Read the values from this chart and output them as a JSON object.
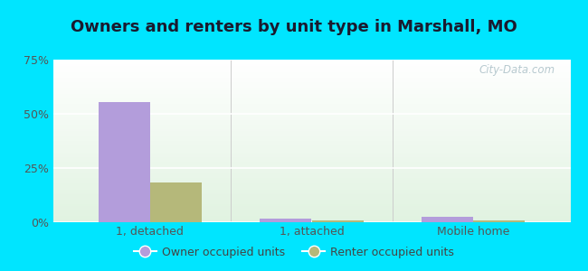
{
  "title": "Owners and renters by unit type in Marshall, MO",
  "categories": [
    "1, detached",
    "1, attached",
    "Mobile home"
  ],
  "owner_values": [
    55.5,
    1.5,
    2.5
  ],
  "renter_values": [
    18.5,
    1.0,
    0.8
  ],
  "owner_color": "#b39ddb",
  "renter_color": "#b5b87a",
  "ylim": [
    0,
    75
  ],
  "yticks": [
    0,
    25,
    50,
    75
  ],
  "ytick_labels": [
    "0%",
    "25%",
    "50%",
    "75%"
  ],
  "bar_width": 0.32,
  "background_outer": "#00e5ff",
  "legend_owner": "Owner occupied units",
  "legend_renter": "Renter occupied units",
  "watermark": "City-Data.com",
  "title_fontsize": 13,
  "axis_fontsize": 9
}
